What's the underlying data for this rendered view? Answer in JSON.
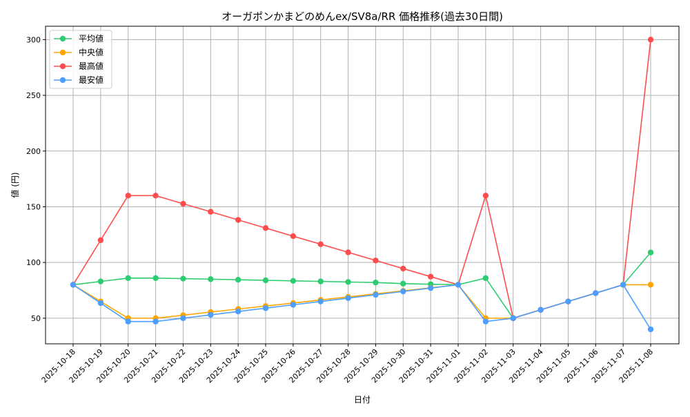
{
  "chart_data": {
    "type": "line",
    "title": "オーガポンかまどのめんex/SV8a/RR 価格推移(過去30日間)",
    "xlabel": "日付",
    "ylabel": "値 (円)",
    "ylim": [
      27,
      312
    ],
    "yticks": [
      50,
      100,
      150,
      200,
      250,
      300
    ],
    "grid": true,
    "legend_placement": "top-left",
    "categories": [
      "2025-10-18",
      "2025-10-19",
      "2025-10-20",
      "2025-10-21",
      "2025-10-22",
      "2025-10-23",
      "2025-10-24",
      "2025-10-25",
      "2025-10-26",
      "2025-10-27",
      "2025-10-28",
      "2025-10-29",
      "2025-10-30",
      "2025-10-31",
      "2025-11-01",
      "2025-11-02",
      "2025-11-03",
      "2025-11-04",
      "2025-11-05",
      "2025-11-06",
      "2025-11-07",
      "2025-11-08"
    ],
    "series": [
      {
        "name": "平均値",
        "color": "#2ecc71",
        "values": [
          80,
          83,
          86,
          86,
          85.5,
          85,
          84.5,
          84,
          83.5,
          83,
          82.5,
          82,
          81,
          80.5,
          80,
          86,
          50,
          57.5,
          65,
          72.5,
          80,
          109
        ]
      },
      {
        "name": "中央値",
        "color": "#ffa500",
        "values": [
          80,
          65,
          50,
          50,
          52.7,
          55.5,
          58.2,
          60.9,
          63.6,
          66.4,
          69.1,
          71.8,
          74.5,
          77.3,
          80,
          50,
          50,
          57.5,
          65,
          72.5,
          80,
          80
        ]
      },
      {
        "name": "最高値",
        "color": "#ff4d4d",
        "values": [
          80,
          120,
          160,
          160,
          152.7,
          145.5,
          138.2,
          130.9,
          123.6,
          116.4,
          109.1,
          101.8,
          94.5,
          87.3,
          80,
          160,
          50,
          57.5,
          65,
          72.5,
          80,
          300
        ]
      },
      {
        "name": "最安値",
        "color": "#4d9fff",
        "values": [
          80,
          63.5,
          47,
          47,
          50,
          53,
          56,
          59,
          62,
          65,
          68,
          71,
          74,
          77,
          80,
          47,
          50,
          57.5,
          65,
          72.5,
          80,
          40
        ]
      }
    ]
  }
}
